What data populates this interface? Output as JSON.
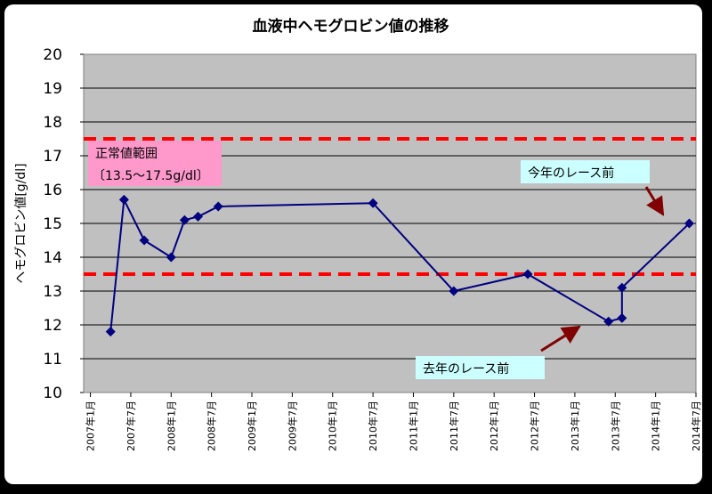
{
  "chart_data": {
    "type": "line",
    "title": "血液中ヘモグロビン値の推移",
    "xlabel": "",
    "ylabel": "ヘモグロビン値[g/dl]",
    "ylim": [
      10,
      20
    ],
    "yticks": [
      "10",
      "11",
      "12",
      "13",
      "14",
      "15",
      "16",
      "17",
      "18",
      "19",
      "20"
    ],
    "xticks": [
      "2007年1月",
      "2007年7月",
      "2008年1月",
      "2008年7月",
      "2009年1月",
      "2009年7月",
      "2010年1月",
      "2010年7月",
      "2011年1月",
      "2011年7月",
      "2012年1月",
      "2012年7月",
      "2013年1月",
      "2013年7月",
      "2014年1月",
      "2014年7月"
    ],
    "series": [
      {
        "color": "#000080",
        "points": [
          [
            "2007-04",
            11.8
          ],
          [
            "2007-06",
            15.7
          ],
          [
            "2007-09",
            14.5
          ],
          [
            "2008-01",
            14.0
          ],
          [
            "2008-03",
            15.1
          ],
          [
            "2008-05",
            15.2
          ],
          [
            "2008-08",
            15.5
          ],
          [
            "2010-07",
            15.6
          ],
          [
            "2011-07",
            13.0
          ],
          [
            "2012-06",
            13.5
          ],
          [
            "2013-06",
            12.1
          ],
          [
            "2013-08",
            12.2
          ],
          [
            "2013-08",
            13.1
          ],
          [
            "2014-06",
            15.0
          ]
        ]
      }
    ],
    "reference_lines": [
      {
        "y": 17.5,
        "color": "#ff0000"
      },
      {
        "y": 13.5,
        "color": "#ff0000"
      }
    ],
    "grid": {
      "horizontal": true,
      "vertical": false
    },
    "plot_background": "#c0c0c0",
    "annotations": {
      "normal_range": {
        "line1": "正常値範囲",
        "line2": "〔13.5～17.5g/dl〕",
        "background": "#ff99cc"
      },
      "this_year": {
        "text": "今年のレース前",
        "background": "#ccffff",
        "arrow_color": "#800000"
      },
      "last_year": {
        "text": "去年のレース前",
        "background": "#ccffff",
        "arrow_color": "#800000"
      }
    }
  }
}
